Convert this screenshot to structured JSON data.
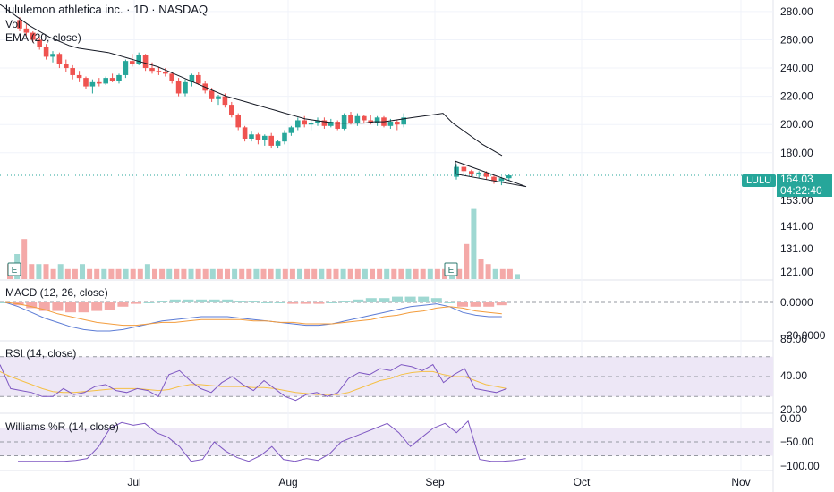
{
  "header": {
    "title": "lululemon athletica inc. · 1D · NASDAQ",
    "vol_label": "Vol",
    "ema_label": "EMA (20, close)",
    "macd_label": "MACD (12, 26, close)",
    "rsi_label": "RSI (14, close)",
    "wr_label": "Williams %R (14, close)"
  },
  "last_price": {
    "ticker": "LULU",
    "price": "164.03",
    "countdown": "04:22:40",
    "value": 164.03
  },
  "colors": {
    "up": "#26a69a",
    "down": "#ef5350",
    "ema": "#131722",
    "macd": "#5b7bd5",
    "signal": "#f39c3c",
    "rsi": "#7e57c2",
    "rsi_ma": "#f5c045",
    "wr": "#7e57c2",
    "band": "#ede7f6"
  },
  "earnings_marker": "E",
  "chart_data": [
    {
      "type": "candlestick",
      "title": "lululemon athletica inc. · 1D · NASDAQ",
      "x_axis_labels": [
        "Jul",
        "Aug",
        "Sep",
        "Oct",
        "Nov"
      ],
      "price_axis_ticks": [
        "280.00",
        "260.00",
        "240.00",
        "220.00",
        "200.00",
        "180.00",
        "153.00",
        "141.00",
        "131.00",
        "121.00"
      ],
      "ylim": [
        152,
        285
      ],
      "ohlc": [
        [
          274,
          276,
          266,
          268
        ],
        [
          268,
          271,
          263,
          265
        ],
        [
          265,
          266,
          258,
          260
        ],
        [
          260,
          262,
          253,
          255
        ],
        [
          255,
          257,
          246,
          248
        ],
        [
          248,
          252,
          244,
          250
        ],
        [
          250,
          251,
          240,
          243
        ],
        [
          243,
          246,
          237,
          240
        ],
        [
          240,
          242,
          232,
          235
        ],
        [
          235,
          238,
          230,
          233
        ],
        [
          233,
          234,
          225,
          227
        ],
        [
          227,
          232,
          222,
          230
        ],
        [
          230,
          233,
          227,
          229
        ],
        [
          229,
          234,
          228,
          233
        ],
        [
          233,
          236,
          230,
          231
        ],
        [
          231,
          236,
          229,
          235
        ],
        [
          235,
          246,
          233,
          245
        ],
        [
          245,
          250,
          241,
          243
        ],
        [
          243,
          251,
          242,
          249
        ],
        [
          249,
          250,
          238,
          240
        ],
        [
          240,
          244,
          236,
          238
        ],
        [
          238,
          241,
          235,
          237
        ],
        [
          237,
          240,
          234,
          236
        ],
        [
          236,
          237,
          229,
          231
        ],
        [
          231,
          233,
          220,
          222
        ],
        [
          222,
          232,
          220,
          230
        ],
        [
          230,
          236,
          227,
          235
        ],
        [
          235,
          237,
          228,
          229
        ],
        [
          229,
          231,
          222,
          224
        ],
        [
          224,
          226,
          216,
          218
        ],
        [
          218,
          221,
          214,
          220
        ],
        [
          220,
          222,
          212,
          214
        ],
        [
          214,
          216,
          205,
          207
        ],
        [
          207,
          208,
          196,
          198
        ],
        [
          198,
          199,
          188,
          190
        ],
        [
          190,
          195,
          188,
          193
        ],
        [
          193,
          194,
          186,
          189
        ],
        [
          189,
          193,
          185,
          192
        ],
        [
          192,
          194,
          183,
          185
        ],
        [
          185,
          189,
          183,
          188
        ],
        [
          188,
          196,
          186,
          194
        ],
        [
          194,
          199,
          192,
          198
        ],
        [
          198,
          205,
          196,
          203
        ],
        [
          203,
          206,
          198,
          200
        ],
        [
          200,
          203,
          196,
          201
        ],
        [
          201,
          205,
          199,
          203
        ],
        [
          203,
          205,
          197,
          199
        ],
        [
          199,
          204,
          198,
          202
        ],
        [
          202,
          203,
          196,
          197
        ],
        [
          197,
          208,
          196,
          207
        ],
        [
          207,
          209,
          200,
          201
        ],
        [
          201,
          208,
          199,
          206
        ],
        [
          206,
          207,
          201,
          203
        ],
        [
          203,
          207,
          200,
          201
        ],
        [
          201,
          206,
          199,
          205
        ],
        [
          205,
          206,
          198,
          199
        ],
        [
          199,
          204,
          197,
          202
        ],
        [
          202,
          203,
          196,
          200
        ],
        [
          200,
          208,
          198,
          205
        ]
      ],
      "earnings_gap_ohlc": [
        [
          163,
          172,
          161,
          170
        ],
        [
          170,
          171,
          165,
          167
        ],
        [
          167,
          168,
          163,
          165
        ],
        [
          165,
          167,
          162,
          166
        ],
        [
          166,
          167,
          161,
          163
        ],
        [
          163,
          164,
          158,
          160
        ],
        [
          160,
          163,
          157,
          162
        ],
        [
          162,
          165,
          160,
          164
        ]
      ],
      "ema20": [
        285,
        280,
        275,
        270,
        266,
        262,
        259,
        256,
        254,
        253,
        252,
        251,
        249,
        247,
        245,
        243,
        241,
        238,
        235,
        232,
        229,
        226,
        223,
        220,
        218,
        216,
        214,
        212,
        210,
        208,
        206,
        204,
        203,
        202,
        201,
        201,
        201,
        201,
        202,
        202,
        203,
        204,
        205,
        206,
        207,
        208,
        201,
        196,
        191,
        186,
        182,
        178
      ]
    },
    {
      "type": "bar",
      "title": "Vol",
      "values": [
        3,
        5,
        8,
        3,
        3,
        3,
        2,
        3,
        2,
        2,
        3,
        2,
        2,
        2,
        2,
        2,
        2,
        2,
        2,
        3,
        2,
        2,
        2,
        2,
        2,
        2,
        2,
        2,
        2,
        2,
        2,
        2,
        2,
        2,
        2,
        2,
        2,
        2,
        2,
        2,
        2,
        2,
        2,
        2,
        2,
        2,
        2,
        2,
        2,
        2,
        2,
        2,
        2,
        2,
        2,
        2,
        2,
        2,
        2,
        2,
        2,
        2,
        2,
        7,
        14,
        4,
        3,
        2,
        2,
        2,
        1
      ]
    },
    {
      "type": "line",
      "title": "MACD (12, 26, close)",
      "axis_ticks": [
        "0.0000",
        "−20.0000"
      ],
      "ylim": [
        -25,
        5
      ],
      "series": [
        {
          "values": [
            0,
            -3,
            -7,
            -11,
            -14,
            -17,
            -19,
            -20,
            -20,
            -19,
            -17,
            -15,
            -13,
            -12,
            -11,
            -10,
            -10,
            -10,
            -11,
            -12,
            -13,
            -14,
            -15,
            -16,
            -16,
            -15,
            -13,
            -11,
            -9,
            -7,
            -5,
            -3,
            -2,
            -1,
            -3,
            -7,
            -9,
            -10,
            -10
          ]
        },
        {
          "values": [
            0,
            -1,
            -3,
            -5,
            -8,
            -10,
            -12,
            -14,
            -15,
            -16,
            -16,
            -15,
            -14,
            -14,
            -13,
            -12,
            -12,
            -12,
            -12,
            -13,
            -13,
            -14,
            -14,
            -15,
            -15,
            -15,
            -14,
            -13,
            -12,
            -10,
            -9,
            -7,
            -6,
            -4,
            -3,
            -4,
            -6,
            -7,
            -8
          ]
        }
      ]
    },
    {
      "type": "line",
      "title": "RSI (14, close)",
      "axis_ticks": [
        "80.00",
        "40.00",
        "20.00"
      ],
      "ylim": [
        15,
        85
      ],
      "series": [
        {
          "values": [
            62,
            38,
            36,
            34,
            30,
            30,
            38,
            32,
            34,
            40,
            42,
            36,
            34,
            38,
            36,
            30,
            52,
            56,
            46,
            38,
            34,
            44,
            50,
            42,
            36,
            46,
            38,
            30,
            26,
            32,
            34,
            30,
            34,
            48,
            54,
            52,
            58,
            56,
            62,
            60,
            56,
            62,
            44,
            52,
            58,
            38,
            36,
            34,
            38
          ]
        },
        {
          "values": [
            55,
            50,
            46,
            42,
            38,
            35,
            34,
            34,
            35,
            36,
            37,
            38,
            38,
            38,
            37,
            36,
            37,
            40,
            42,
            42,
            41,
            40,
            40,
            40,
            39,
            39,
            38,
            36,
            34,
            33,
            32,
            32,
            32,
            34,
            38,
            42,
            46,
            48,
            52,
            54,
            55,
            55,
            52,
            50,
            50,
            46,
            42,
            40,
            38
          ]
        }
      ]
    },
    {
      "type": "line",
      "title": "Williams %R (14, close)",
      "axis_ticks": [
        "0.00",
        "−50.00",
        "−100.00"
      ],
      "ylim": [
        -110,
        10
      ],
      "series": [
        {
          "values": [
            -92,
            -92,
            -92,
            -92,
            -92,
            -90,
            -86,
            -60,
            -20,
            -8,
            -14,
            -10,
            -30,
            -40,
            -60,
            -92,
            -88,
            -50,
            -70,
            -84,
            -92,
            -80,
            -60,
            -88,
            -92,
            -86,
            -90,
            -76,
            -50,
            -40,
            -30,
            -20,
            -10,
            -30,
            -60,
            -40,
            -20,
            -10,
            -30,
            -5,
            -88,
            -92,
            -92,
            -90,
            -86
          ]
        }
      ]
    }
  ]
}
